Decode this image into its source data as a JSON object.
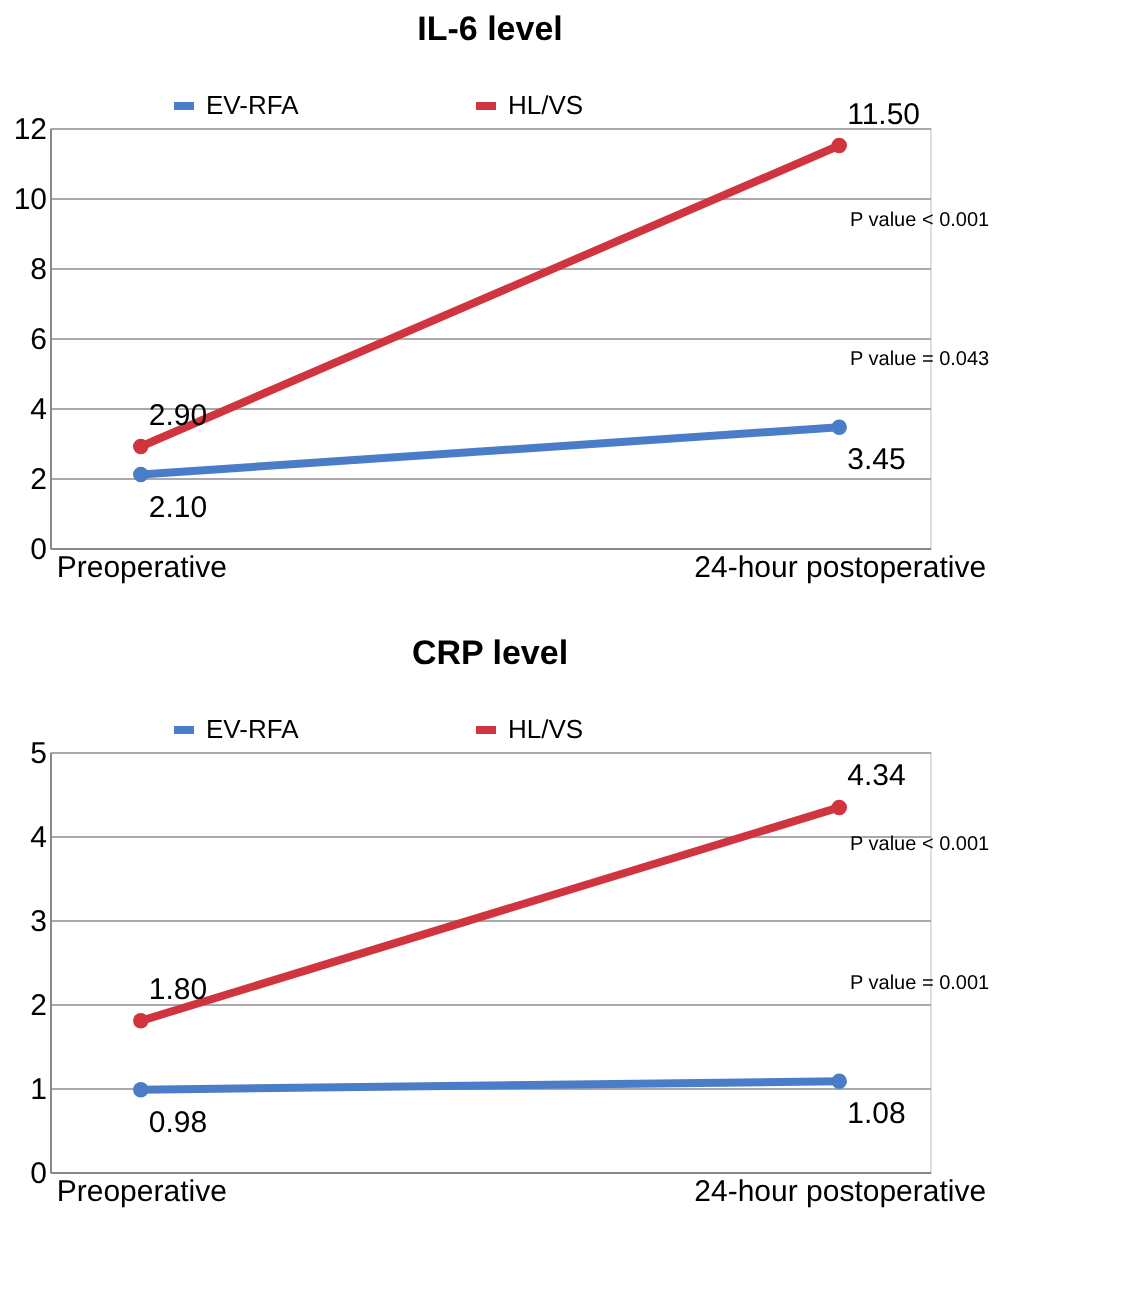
{
  "chart_data": [
    {
      "type": "line",
      "title": "IL-6 level",
      "categories": [
        "Preoperative",
        "24-hour postoperative"
      ],
      "series": [
        {
          "name": "EV-RFA",
          "color": "#4a7cc7",
          "values": [
            2.1,
            3.45
          ],
          "value_labels": [
            "2.10",
            "3.45"
          ]
        },
        {
          "name": "HL/VS",
          "color": "#d0343f",
          "values": [
            2.9,
            11.5
          ],
          "value_labels": [
            "2.90",
            "11.50"
          ]
        }
      ],
      "ylim": [
        0,
        12
      ],
      "yticks": [
        0,
        2,
        4,
        6,
        8,
        10,
        12
      ],
      "grid": "y",
      "legend": "top",
      "marker": "circle",
      "line_style": "solid",
      "annotations": [
        "P value < 0.001",
        "P value = 0.043"
      ]
    },
    {
      "type": "line",
      "title": "CRP level",
      "categories": [
        "Preoperative",
        "24-hour postoperative"
      ],
      "series": [
        {
          "name": "EV-RFA",
          "color": "#4a7cc7",
          "values": [
            0.98,
            1.08
          ],
          "value_labels": [
            "0.98",
            "1.08"
          ]
        },
        {
          "name": "HL/VS",
          "color": "#d0343f",
          "values": [
            1.8,
            4.34
          ],
          "value_labels": [
            "1.80",
            "4.34"
          ]
        }
      ],
      "ylim": [
        0,
        5
      ],
      "yticks": [
        0,
        1,
        2,
        3,
        4,
        5
      ],
      "grid": "y",
      "legend": "top",
      "marker": "circle",
      "line_style": "solid",
      "annotations": [
        "P value < 0.001",
        "P value = 0.001"
      ]
    }
  ]
}
